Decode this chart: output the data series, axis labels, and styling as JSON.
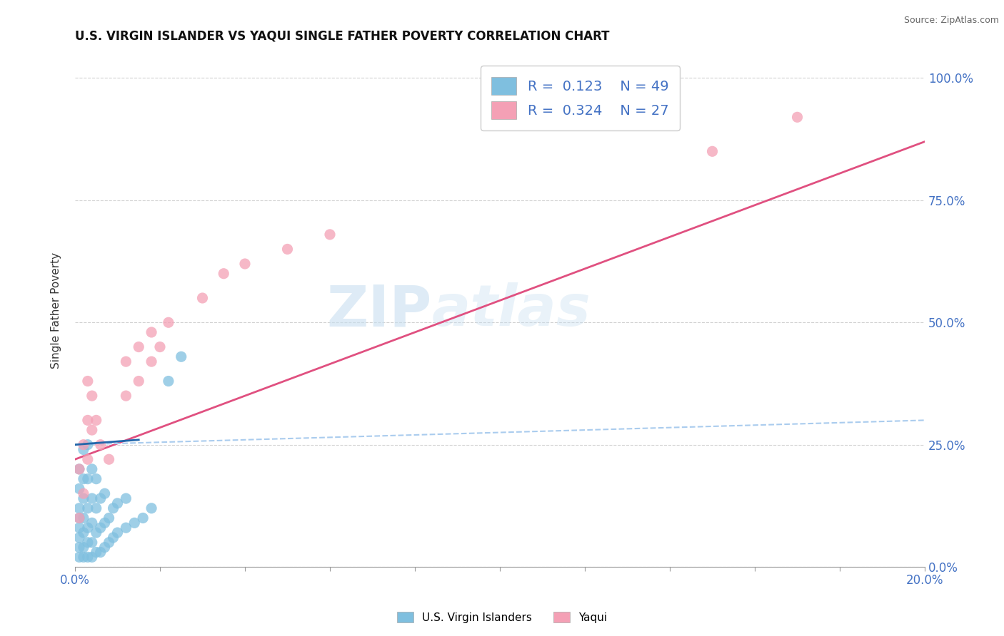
{
  "title": "U.S. VIRGIN ISLANDER VS YAQUI SINGLE FATHER POVERTY CORRELATION CHART",
  "source": "Source: ZipAtlas.com",
  "ylabel": "Single Father Poverty",
  "xlim": [
    0.0,
    0.2
  ],
  "ylim": [
    0.0,
    1.05
  ],
  "yticks_right": [
    0.0,
    0.25,
    0.5,
    0.75,
    1.0
  ],
  "yticklabels_right": [
    "0.0%",
    "25.0%",
    "50.0%",
    "75.0%",
    "100.0%"
  ],
  "blue_color": "#7fbfdf",
  "pink_color": "#f4a0b5",
  "blue_line_color": "#aaccee",
  "pink_line_color": "#e05080",
  "R_blue": 0.123,
  "N_blue": 49,
  "R_pink": 0.324,
  "N_pink": 27,
  "legend_label_blue": "U.S. Virgin Islanders",
  "legend_label_pink": "Yaqui",
  "watermark_zip": "ZIP",
  "watermark_atlas": "atlas",
  "background_color": "#ffffff",
  "grid_color": "#cccccc",
  "blue_scatter_x": [
    0.001,
    0.001,
    0.001,
    0.001,
    0.001,
    0.001,
    0.001,
    0.001,
    0.002,
    0.002,
    0.002,
    0.002,
    0.002,
    0.002,
    0.002,
    0.003,
    0.003,
    0.003,
    0.003,
    0.003,
    0.003,
    0.004,
    0.004,
    0.004,
    0.004,
    0.004,
    0.005,
    0.005,
    0.005,
    0.005,
    0.006,
    0.006,
    0.006,
    0.007,
    0.007,
    0.007,
    0.008,
    0.008,
    0.009,
    0.009,
    0.01,
    0.01,
    0.012,
    0.012,
    0.014,
    0.016,
    0.018,
    0.022,
    0.025
  ],
  "blue_scatter_y": [
    0.02,
    0.04,
    0.06,
    0.08,
    0.1,
    0.12,
    0.16,
    0.2,
    0.02,
    0.04,
    0.07,
    0.1,
    0.14,
    0.18,
    0.24,
    0.02,
    0.05,
    0.08,
    0.12,
    0.18,
    0.25,
    0.02,
    0.05,
    0.09,
    0.14,
    0.2,
    0.03,
    0.07,
    0.12,
    0.18,
    0.03,
    0.08,
    0.14,
    0.04,
    0.09,
    0.15,
    0.05,
    0.1,
    0.06,
    0.12,
    0.07,
    0.13,
    0.08,
    0.14,
    0.09,
    0.1,
    0.12,
    0.38,
    0.43
  ],
  "pink_scatter_x": [
    0.001,
    0.001,
    0.002,
    0.002,
    0.003,
    0.003,
    0.003,
    0.004,
    0.004,
    0.005,
    0.006,
    0.008,
    0.012,
    0.012,
    0.015,
    0.015,
    0.018,
    0.018,
    0.02,
    0.022,
    0.03,
    0.035,
    0.04,
    0.05,
    0.06,
    0.15,
    0.17
  ],
  "pink_scatter_y": [
    0.1,
    0.2,
    0.15,
    0.25,
    0.22,
    0.3,
    0.38,
    0.28,
    0.35,
    0.3,
    0.25,
    0.22,
    0.35,
    0.42,
    0.38,
    0.45,
    0.42,
    0.48,
    0.45,
    0.5,
    0.55,
    0.6,
    0.62,
    0.65,
    0.68,
    0.85,
    0.92
  ]
}
